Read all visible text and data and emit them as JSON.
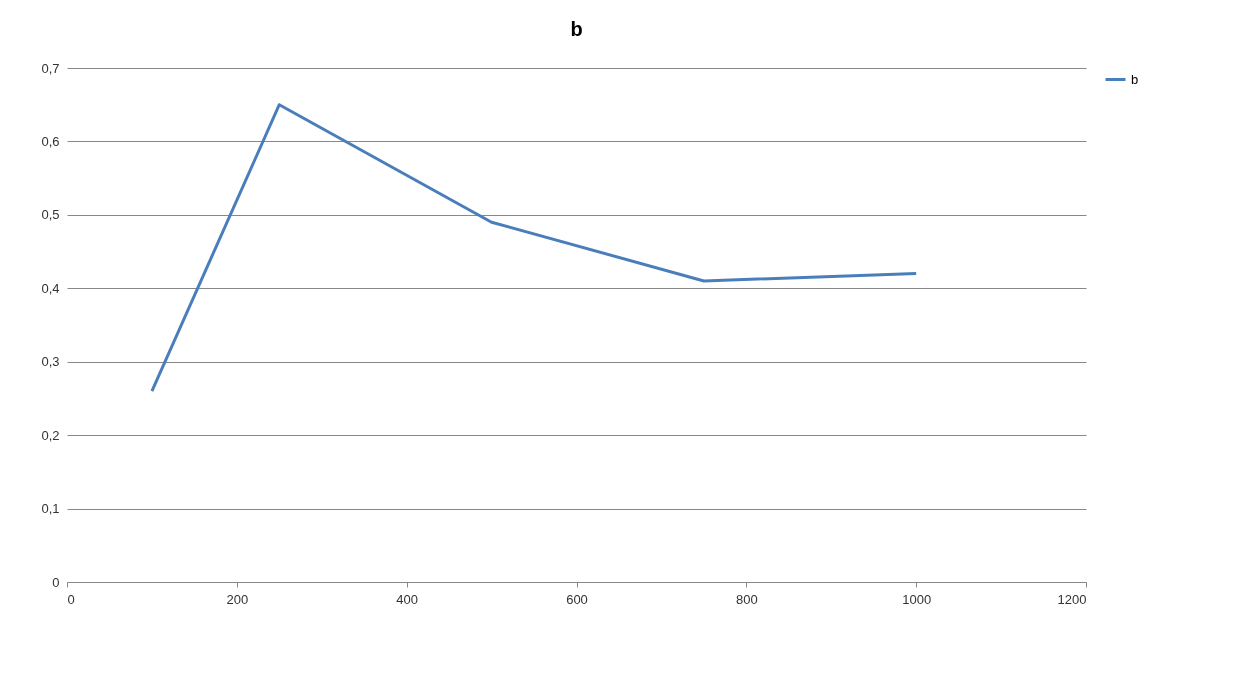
{
  "chart_data": {
    "type": "line",
    "title": "b",
    "x": [
      100,
      250,
      500,
      750,
      1000
    ],
    "series": [
      {
        "name": "b",
        "color": "#4a7ebb",
        "values": [
          0.26,
          0.65,
          0.49,
          0.41,
          0.42
        ]
      }
    ],
    "xlim": [
      0,
      1200
    ],
    "xticks": [
      0,
      200,
      400,
      600,
      800,
      1000,
      1200
    ],
    "ylim": [
      0,
      0.7
    ],
    "yticks": [
      0,
      {
        "value": 0.1,
        "label": "0,1"
      },
      {
        "value": 0.2,
        "label": "0,2"
      },
      {
        "value": 0.3,
        "label": "0,3"
      },
      {
        "value": 0.4,
        "label": "0,4"
      },
      {
        "value": 0.5,
        "label": "0,5"
      },
      {
        "value": 0.6,
        "label": "0,6"
      },
      {
        "value": 0.7,
        "label": "0,7"
      }
    ],
    "grid": "y",
    "legend": "right",
    "marker": "none",
    "line_style": "solid"
  }
}
